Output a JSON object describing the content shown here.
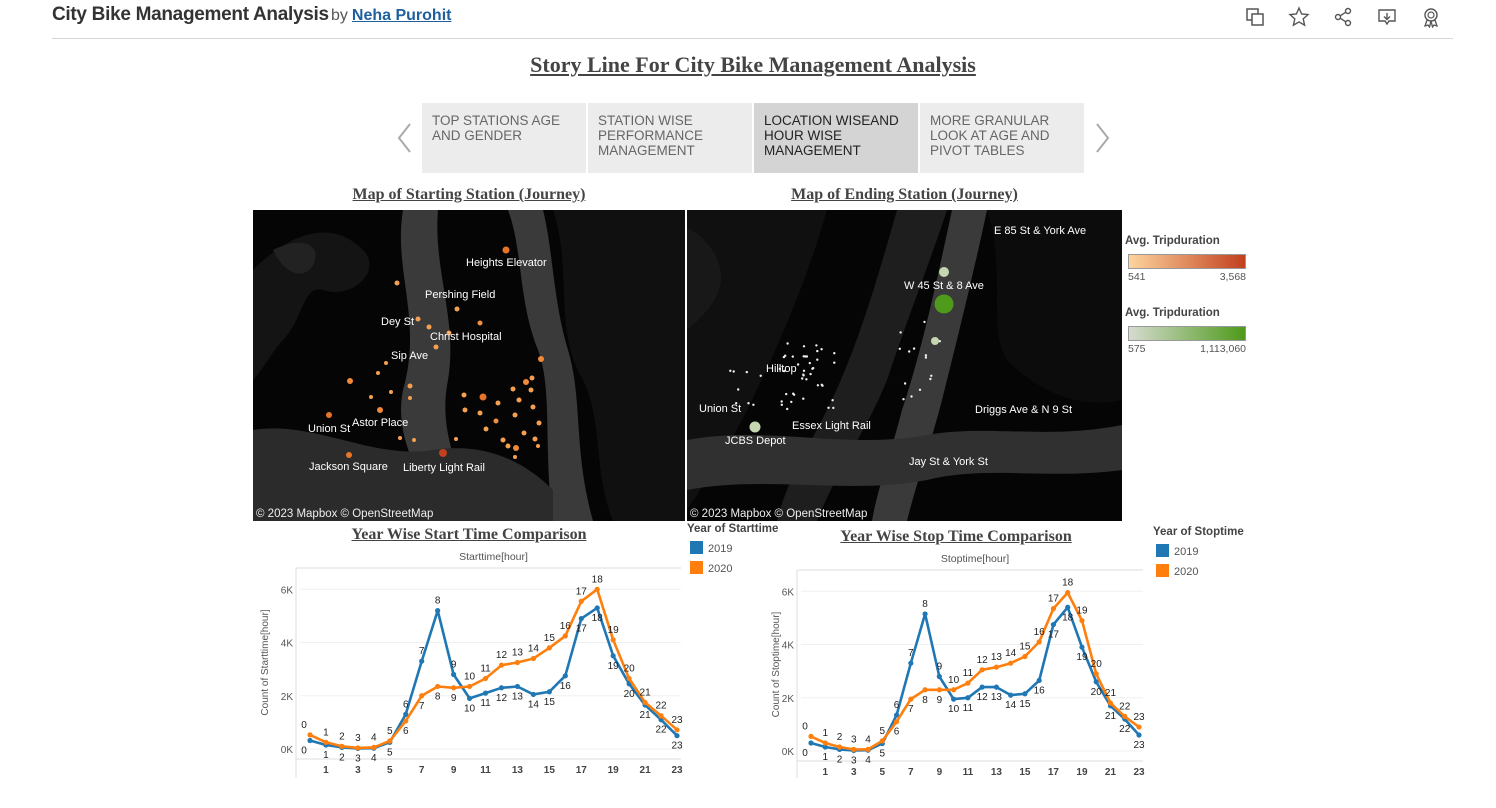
{
  "header": {
    "title": "City Bike Management Analysis",
    "by": "by",
    "author": "Neha Purohit"
  },
  "story": {
    "title": "Story Line For City Bike Management Analysis",
    "points": [
      {
        "label": "TOP STATIONS AGE AND GENDER",
        "active": false
      },
      {
        "label": "STATION WISE PERFORMANCE MANAGEMENT",
        "active": false
      },
      {
        "label": "LOCATION WISEAND HOUR WISE MANAGEMENT",
        "active": true
      },
      {
        "label": "MORE GRANULAR LOOK AT AGE AND PIVOT TABLES",
        "active": false
      }
    ]
  },
  "maps": {
    "start": {
      "title": "Map of Starting Station (Journey)",
      "labels": [
        "Heights Elevator",
        "Pershing Field",
        "Dey St",
        "Christ Hospital",
        "Sip Ave",
        "Union St",
        "Astor Place",
        "Jackson Square",
        "Liberty Light Rail"
      ],
      "attribution": "© 2023 Mapbox  © OpenStreetMap"
    },
    "end": {
      "title": "Map of Ending Station (Journey)",
      "labels": [
        "E 85 St & York Ave",
        "W 45 St & 8 Ave",
        "Hilltop",
        "Union St",
        "Essex Light Rail",
        "JCBS Depot",
        "Driggs Ave & N 9 St",
        "Jay St & York St"
      ],
      "attribution": "© 2023 Mapbox  © OpenStreetMap"
    }
  },
  "legends": {
    "start_color": {
      "title": "Avg. Tripduration",
      "min": "541",
      "max": "3,568",
      "from": "#fdd49e",
      "to": "#c1401e"
    },
    "end_color": {
      "title": "Avg. Tripduration",
      "min": "575",
      "max": "1,113,060",
      "from": "#d6dbd0",
      "to": "#4e9a1a"
    },
    "start_year": {
      "title": "Year of Starttime",
      "items": [
        {
          "label": "2019",
          "color": "#1f77b4"
        },
        {
          "label": "2020",
          "color": "#ff7f0e"
        }
      ]
    },
    "stop_year": {
      "title": "Year of Stoptime",
      "items": [
        {
          "label": "2019",
          "color": "#1f77b4"
        },
        {
          "label": "2020",
          "color": "#ff7f0e"
        }
      ]
    }
  },
  "chart_data": [
    {
      "type": "line",
      "title": "Year Wise Start Time Comparison",
      "xlabel": "Starttime[hour]",
      "ylabel": "Count of Starttime[hour]",
      "x": [
        0,
        1,
        2,
        3,
        4,
        5,
        6,
        7,
        8,
        9,
        10,
        11,
        12,
        13,
        14,
        15,
        16,
        17,
        18,
        19,
        20,
        21,
        22,
        23
      ],
      "x_ticks": [
        "1",
        "3",
        "5",
        "7",
        "9",
        "11",
        "13",
        "15",
        "17",
        "19",
        "21",
        "23"
      ],
      "y_ticks": [
        "0K",
        "2K",
        "4K",
        "6K"
      ],
      "ylim": [
        0,
        6500
      ],
      "series": [
        {
          "name": "2019",
          "color": "#1f77b4",
          "values": [
            320,
            150,
            60,
            20,
            30,
            250,
            1300,
            3300,
            5200,
            2800,
            1900,
            2100,
            2300,
            2350,
            2050,
            2150,
            2750,
            4900,
            5300,
            3500,
            2450,
            1650,
            1100,
            500
          ]
        },
        {
          "name": "2020",
          "color": "#ff7f0e",
          "values": [
            530,
            250,
            100,
            40,
            60,
            300,
            1050,
            2000,
            2350,
            2300,
            2350,
            2650,
            3150,
            3250,
            3400,
            3800,
            4250,
            5550,
            6000,
            4100,
            2650,
            1750,
            1250,
            720
          ]
        }
      ]
    },
    {
      "type": "line",
      "title": "Year Wise Stop Time Comparison",
      "xlabel": "Stoptime[hour]",
      "ylabel": "Count of Stoptime[hour]",
      "x": [
        0,
        1,
        2,
        3,
        4,
        5,
        6,
        7,
        8,
        9,
        10,
        11,
        12,
        13,
        14,
        15,
        16,
        17,
        18,
        19,
        20,
        21,
        22,
        23
      ],
      "x_ticks": [
        "1",
        "3",
        "5",
        "7",
        "9",
        "11",
        "13",
        "15",
        "17",
        "19",
        "21",
        "23"
      ],
      "y_ticks": [
        "0K",
        "2K",
        "4K",
        "6K"
      ],
      "ylim": [
        0,
        6500
      ],
      "series": [
        {
          "name": "2019",
          "color": "#1f77b4",
          "values": [
            300,
            150,
            60,
            20,
            30,
            280,
            1350,
            3300,
            5150,
            2800,
            1950,
            2000,
            2400,
            2400,
            2100,
            2150,
            2650,
            4750,
            5400,
            3900,
            2600,
            1700,
            1200,
            600
          ]
        },
        {
          "name": "2020",
          "color": "#ff7f0e",
          "values": [
            550,
            300,
            150,
            60,
            60,
            380,
            1100,
            1950,
            2300,
            2300,
            2300,
            2550,
            3050,
            3150,
            3300,
            3550,
            4100,
            5350,
            5950,
            4900,
            2900,
            1800,
            1300,
            900
          ]
        }
      ]
    }
  ]
}
